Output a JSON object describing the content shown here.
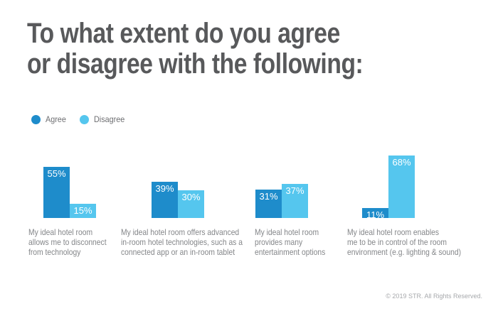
{
  "page": {
    "title_lines": [
      "To what extent do you agree",
      "or disagree with the following:"
    ],
    "footer": "© 2019 STR. All Rights Reserved."
  },
  "legend": {
    "items": [
      {
        "label": "Agree",
        "color": "#1e8ccb"
      },
      {
        "label": "Disagree",
        "color": "#55c6ee"
      }
    ]
  },
  "colors": {
    "agree": "#1e8ccb",
    "disagree": "#55c6ee",
    "title_text": "#58595b",
    "category_text": "#848689",
    "footer_text": "#a7a9ac",
    "percent_text": "#ffffff",
    "background": "#ffffff"
  },
  "chart_data": {
    "type": "bar",
    "title": "To what extent do you agree or disagree with the following:",
    "unit": "percent",
    "series": [
      "Agree",
      "Disagree"
    ],
    "ylim": [
      0,
      100
    ],
    "grid": false,
    "axes_shown": false,
    "legend_position": "top-left",
    "groups": [
      {
        "category": "My ideal hotel room allows me to disconnect from technology",
        "category_lines": [
          "My ideal hotel room",
          "allows me to disconnect",
          "from technology"
        ],
        "agree": 55,
        "disagree": 15,
        "agree_label": "55%",
        "disagree_label": "15%"
      },
      {
        "category": "My ideal hotel room offers advanced in-room hotel technologies, such as a connected app or an in-room tablet",
        "category_lines": [
          "My ideal hotel room offers advanced",
          "in-room hotel technologies, such as a",
          "connected app or an in-room tablet"
        ],
        "agree": 39,
        "disagree": 30,
        "agree_label": "39%",
        "disagree_label": "30%"
      },
      {
        "category": "My ideal hotel room provides many entertainment options",
        "category_lines": [
          "My ideal hotel room",
          "provides many",
          "entertainment options"
        ],
        "agree": 31,
        "disagree": 37,
        "agree_label": "31%",
        "disagree_label": "37%"
      },
      {
        "category": "My ideal hotel room enables me to be in control of the room environment (e.g. lighting & sound)",
        "category_lines": [
          "My ideal hotel room enables",
          "me to be in control of the room",
          "environment (e.g. lighting & sound)"
        ],
        "agree": 11,
        "disagree": 68,
        "agree_label": "11%",
        "disagree_label": "68%"
      }
    ]
  }
}
